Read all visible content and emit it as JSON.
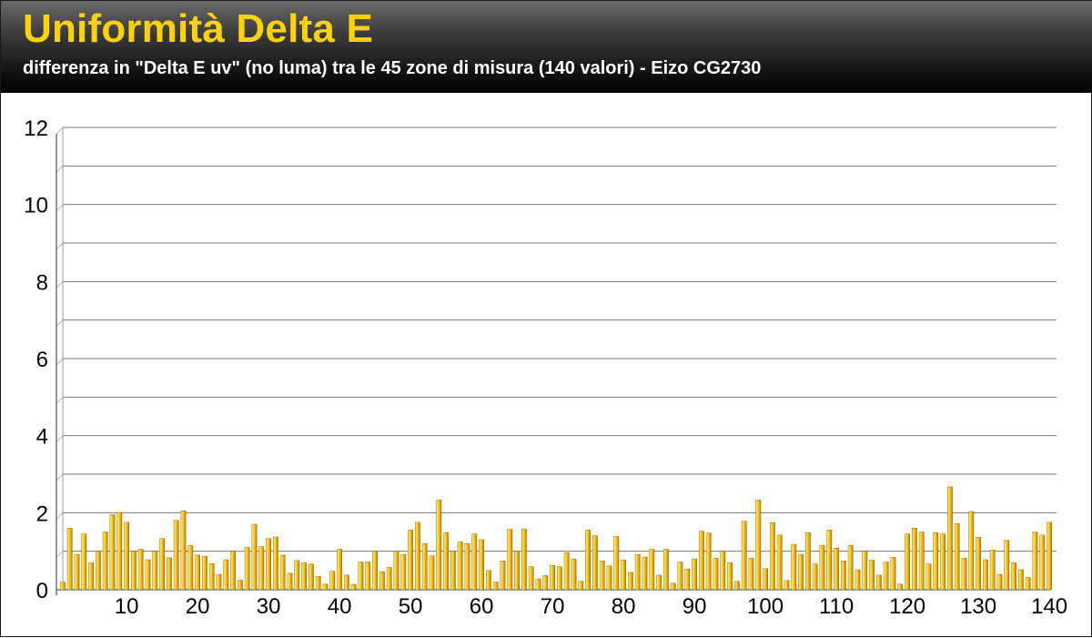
{
  "header": {
    "title": "Uniformità Delta E",
    "subtitle": "differenza in \"Delta E uv\" (no luma) tra le 45 zone di misura (140 valori) - Eizo CG2730"
  },
  "colors": {
    "title": "#ffd200",
    "bar_light": "#fff27a",
    "bar_mid": "#f2c21a",
    "bar_dark": "#c87a00",
    "grid": "#777777"
  },
  "chart_data": {
    "type": "bar",
    "title": "Uniformità Delta E",
    "subtitle": "differenza in \"Delta E uv\" (no luma) tra le 45 zone di misura (140 valori) - Eizo CG2730",
    "xlabel": "",
    "ylabel": "",
    "ylim": [
      0,
      12
    ],
    "yticks": [
      0,
      2,
      4,
      6,
      8,
      10,
      12
    ],
    "xticks": [
      10,
      20,
      30,
      40,
      50,
      60,
      70,
      80,
      90,
      100,
      110,
      120,
      130,
      140
    ],
    "grid": true,
    "x": [
      1,
      2,
      3,
      4,
      5,
      6,
      7,
      8,
      9,
      10,
      11,
      12,
      13,
      14,
      15,
      16,
      17,
      18,
      19,
      20,
      21,
      22,
      23,
      24,
      25,
      26,
      27,
      28,
      29,
      30,
      31,
      32,
      33,
      34,
      35,
      36,
      37,
      38,
      39,
      40,
      41,
      42,
      43,
      44,
      45,
      46,
      47,
      48,
      49,
      50,
      51,
      52,
      53,
      54,
      55,
      56,
      57,
      58,
      59,
      60,
      61,
      62,
      63,
      64,
      65,
      66,
      67,
      68,
      69,
      70,
      71,
      72,
      73,
      74,
      75,
      76,
      77,
      78,
      79,
      80,
      81,
      82,
      83,
      84,
      85,
      86,
      87,
      88,
      89,
      90,
      91,
      92,
      93,
      94,
      95,
      96,
      97,
      98,
      99,
      100,
      101,
      102,
      103,
      104,
      105,
      106,
      107,
      108,
      109,
      110,
      111,
      112,
      113,
      114,
      115,
      116,
      117,
      118,
      119,
      120,
      121,
      122,
      123,
      124,
      125,
      126,
      127,
      128,
      129,
      130,
      131,
      132,
      133,
      134,
      135,
      136,
      137,
      138,
      139,
      140
    ],
    "values": [
      0.2,
      1.6,
      0.92,
      1.45,
      0.7,
      1.0,
      1.5,
      1.95,
      2.0,
      1.75,
      1.0,
      1.05,
      0.78,
      1.0,
      1.33,
      0.83,
      1.8,
      2.05,
      1.15,
      0.9,
      0.87,
      0.68,
      0.4,
      0.78,
      1.0,
      0.25,
      1.1,
      1.7,
      1.12,
      1.33,
      1.37,
      0.9,
      0.43,
      0.76,
      0.7,
      0.67,
      0.35,
      0.15,
      0.48,
      1.05,
      0.38,
      0.14,
      0.72,
      0.72,
      1.0,
      0.47,
      0.58,
      1.0,
      0.92,
      1.55,
      1.75,
      1.2,
      0.88,
      2.33,
      1.48,
      1.0,
      1.24,
      1.2,
      1.45,
      1.3,
      0.5,
      0.2,
      0.75,
      1.57,
      1.0,
      1.58,
      0.6,
      0.28,
      0.37,
      0.63,
      0.6,
      0.96,
      0.8,
      0.22,
      1.55,
      1.4,
      0.75,
      0.62,
      1.38,
      0.77,
      0.45,
      0.92,
      0.85,
      1.05,
      0.38,
      1.05,
      0.17,
      0.72,
      0.54,
      0.8,
      1.52,
      1.47,
      0.82,
      1.0,
      0.7,
      0.22,
      1.78,
      0.82,
      2.33,
      0.55,
      1.74,
      1.42,
      0.24,
      1.18,
      0.92,
      1.48,
      0.67,
      1.15,
      1.55,
      1.08,
      0.75,
      1.15,
      0.52,
      1.0,
      0.77,
      0.38,
      0.72,
      0.84,
      0.15,
      1.45,
      1.6,
      1.5,
      0.67,
      1.48,
      1.45,
      2.67,
      1.72,
      0.82,
      2.03,
      1.36,
      0.78,
      1.03,
      0.4,
      1.28,
      0.7,
      0.52,
      0.32,
      1.5,
      1.42,
      1.75
    ]
  }
}
